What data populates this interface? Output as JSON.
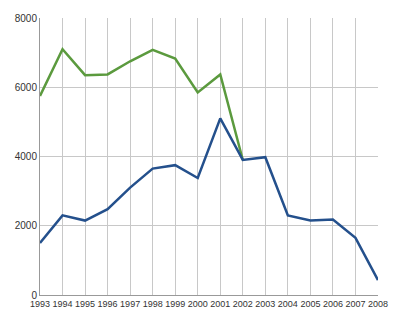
{
  "chart_data": {
    "type": "line",
    "x": [
      1993,
      1994,
      1995,
      1996,
      1997,
      1998,
      1999,
      2000,
      2001,
      2002,
      2003,
      2004,
      2005,
      2006,
      2007,
      2008
    ],
    "series": [
      {
        "color": "#5b9a3e",
        "values": [
          5750,
          7100,
          6350,
          6370,
          6750,
          7080,
          6830,
          5850,
          6370,
          3900,
          null,
          null,
          null,
          null,
          null,
          null
        ]
      },
      {
        "color": "#24508c",
        "values": [
          1500,
          2300,
          2150,
          2480,
          3100,
          3650,
          3750,
          3380,
          5100,
          3900,
          3980,
          2300,
          2150,
          2180,
          1650,
          430
        ]
      }
    ],
    "xlim": [
      1993,
      2008
    ],
    "xticks": [
      1993,
      1994,
      1995,
      1996,
      1997,
      1998,
      1999,
      2000,
      2001,
      2002,
      2003,
      2004,
      2005,
      2006,
      2007,
      2008
    ],
    "ylim": [
      0,
      8000
    ],
    "yticks": [
      0,
      2000,
      4000,
      6000,
      8000
    ],
    "grid": true
  }
}
